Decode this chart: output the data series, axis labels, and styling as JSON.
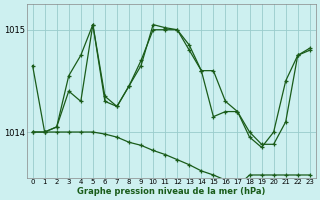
{
  "xlabel": "Graphe pression niveau de la mer (hPa)",
  "bg_color": "#cdf0f0",
  "grid_color": "#99cccc",
  "line_color": "#1a5c1a",
  "yticks": [
    1014,
    1015
  ],
  "xticks": [
    0,
    1,
    2,
    3,
    4,
    5,
    6,
    7,
    8,
    9,
    10,
    11,
    12,
    13,
    14,
    15,
    16,
    17,
    18,
    19,
    20,
    21,
    22,
    23
  ],
  "xlim": [
    -0.5,
    23.5
  ],
  "ylim": [
    1013.55,
    1015.25
  ],
  "line1_x": [
    0,
    1,
    2,
    3,
    4,
    5,
    6,
    7,
    8,
    9,
    10,
    11,
    12,
    13,
    14,
    15,
    16,
    17,
    18,
    19,
    20,
    21,
    22,
    23
  ],
  "line1_y": [
    1014.65,
    1014.0,
    1014.05,
    1014.55,
    1014.75,
    1015.05,
    1014.35,
    1014.25,
    1014.45,
    1014.65,
    1015.05,
    1015.02,
    1015.0,
    1014.85,
    1014.6,
    1014.15,
    1014.2,
    1014.2,
    1013.95,
    1013.85,
    1014.0,
    1014.5,
    1014.75,
    1014.8
  ],
  "line2_x": [
    0,
    1,
    2,
    3,
    4,
    5,
    6,
    7,
    8,
    9,
    10,
    11,
    12,
    13,
    14,
    15,
    16,
    17,
    18,
    19,
    20,
    21,
    22,
    23
  ],
  "line2_y": [
    1014.0,
    1014.0,
    1014.05,
    1014.4,
    1014.3,
    1015.05,
    1014.3,
    1014.25,
    1014.45,
    1014.7,
    1015.0,
    1015.0,
    1015.0,
    1014.8,
    1014.6,
    1014.6,
    1014.3,
    1014.2,
    1014.0,
    1013.88,
    1013.88,
    1014.1,
    1014.75,
    1014.82
  ],
  "line3_x": [
    0,
    1,
    2,
    3,
    4,
    5,
    6,
    7,
    8,
    9,
    10,
    11,
    12,
    13,
    14,
    15,
    16,
    17,
    18,
    19,
    20,
    21,
    22,
    23
  ],
  "line3_y": [
    1014.0,
    1014.0,
    1014.0,
    1014.0,
    1014.0,
    1014.0,
    1013.98,
    1013.95,
    1013.9,
    1013.87,
    1013.82,
    1013.78,
    1013.73,
    1013.68,
    1013.62,
    1013.58,
    1013.53,
    1013.47,
    1013.58,
    1013.58,
    1013.58,
    1013.58,
    1013.58,
    1013.58
  ]
}
